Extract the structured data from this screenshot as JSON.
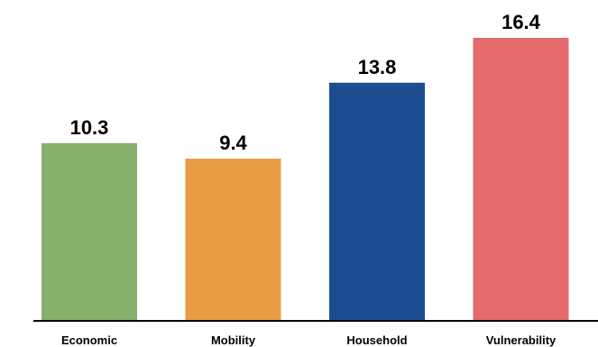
{
  "chart_data": {
    "type": "bar",
    "categories": [
      "Economic",
      "Mobility",
      "Household",
      "Vulnerability"
    ],
    "values": [
      10.3,
      9.4,
      13.8,
      16.4
    ],
    "value_labels": [
      "10.3",
      "9.4",
      "13.8",
      "16.4"
    ],
    "colors": [
      "#87b06a",
      "#e89c42",
      "#1d4c91",
      "#e46a6c"
    ],
    "ylim": [
      0,
      16.4
    ],
    "axis_color": "#000000",
    "grid": false,
    "legend": "none"
  }
}
